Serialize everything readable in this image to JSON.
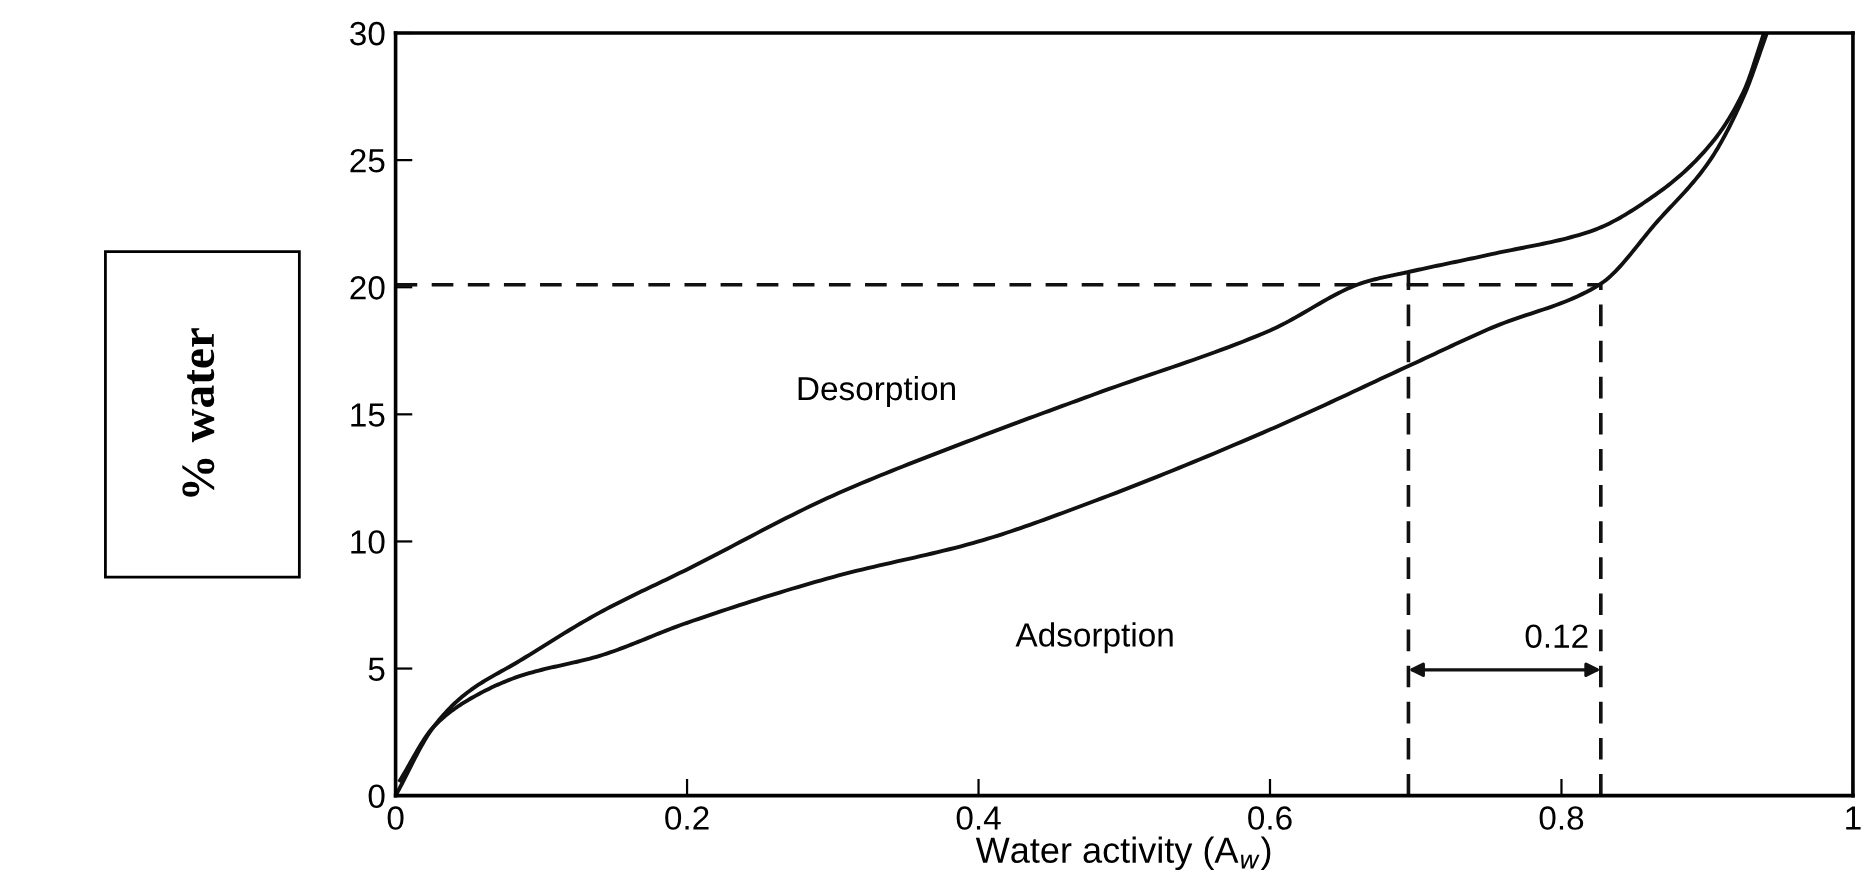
{
  "chart_data": {
    "type": "line",
    "xlabel": "Water activity (A$_{w}$)",
    "ylabel": "% water",
    "xlim": [
      0,
      1
    ],
    "ylim": [
      0,
      30
    ],
    "xticks": [
      0,
      0.2,
      0.4,
      0.6,
      0.8,
      1
    ],
    "yticks": [
      0,
      5,
      10,
      15,
      20,
      25,
      30
    ],
    "grid": false,
    "legend": false,
    "series": [
      {
        "color": "#111111",
        "line_style": "solid",
        "x": [
          0,
          0.026,
          0.048,
          0.085,
          0.14,
          0.2,
          0.3,
          0.4,
          0.48,
          0.6,
          0.665,
          0.695,
          0.752,
          0.82,
          0.866,
          0.902,
          0.925,
          0.939
        ],
        "values": [
          0,
          2.7,
          4.0,
          5.3,
          7.2,
          8.9,
          11.8,
          14.1,
          15.8,
          18.3,
          20.2,
          20.6,
          21.3,
          22.2,
          23.7,
          25.6,
          27.7,
          30
        ]
      },
      {
        "color": "#111111",
        "line_style": "solid",
        "x": [
          0.003,
          0.026,
          0.048,
          0.085,
          0.14,
          0.2,
          0.3,
          0.4,
          0.48,
          0.6,
          0.695,
          0.752,
          0.826,
          0.866,
          0.902,
          0.925,
          0.941
        ],
        "values": [
          0.6,
          2.7,
          3.7,
          4.7,
          5.5,
          6.8,
          8.6,
          10.0,
          11.6,
          14.4,
          16.9,
          18.4,
          20.1,
          22.6,
          25.0,
          27.5,
          30
        ]
      },
      {
        "color": "#111111",
        "line_style": "dashed",
        "x": [
          0,
          0.827
        ],
        "values": [
          20.1,
          20.1
        ]
      },
      {
        "color": "#111111",
        "line_style": "dashed",
        "x": [
          0.695,
          0.695
        ],
        "values": [
          0,
          20.6
        ]
      },
      {
        "color": "#111111",
        "line_style": "dashed",
        "x": [
          0.827,
          0.827
        ],
        "values": [
          0,
          20.1
        ]
      }
    ],
    "annotations": [
      "Desorption",
      "Adsorption",
      "0.12"
    ]
  }
}
